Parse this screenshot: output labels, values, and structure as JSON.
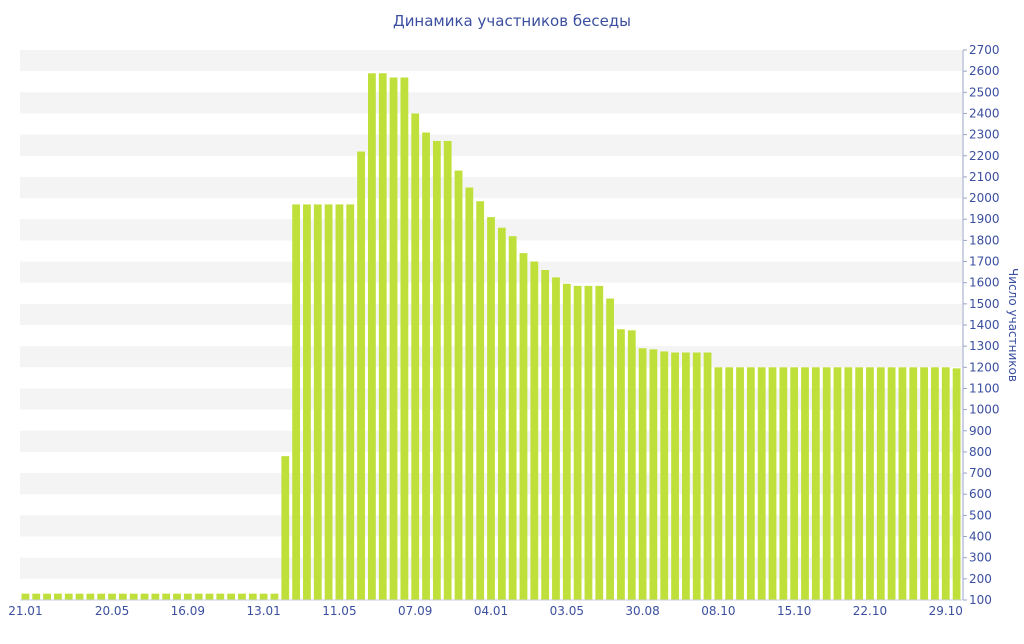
{
  "chart_data": {
    "type": "bar",
    "title": "Динамика участников беседы",
    "xlabel": "",
    "ylabel": "Число участников",
    "ylim": [
      100,
      2700
    ],
    "y_ticks": [
      100,
      200,
      300,
      400,
      500,
      600,
      700,
      800,
      900,
      1000,
      1100,
      1200,
      1300,
      1400,
      1500,
      1600,
      1700,
      1800,
      1900,
      2000,
      2100,
      2200,
      2300,
      2400,
      2500,
      2600,
      2700
    ],
    "x_tick_labels": [
      {
        "index": 0,
        "label": "21.01"
      },
      {
        "index": 8,
        "label": "20.05"
      },
      {
        "index": 15,
        "label": "16.09"
      },
      {
        "index": 22,
        "label": "13.01"
      },
      {
        "index": 29,
        "label": "11.05"
      },
      {
        "index": 36,
        "label": "07.09"
      },
      {
        "index": 43,
        "label": "04.01"
      },
      {
        "index": 50,
        "label": "03.05"
      },
      {
        "index": 57,
        "label": "30.08"
      },
      {
        "index": 64,
        "label": "08.10"
      },
      {
        "index": 71,
        "label": "15.10"
      },
      {
        "index": 78,
        "label": "22.10"
      },
      {
        "index": 85,
        "label": "29.10"
      }
    ],
    "values": [
      130,
      130,
      130,
      130,
      130,
      130,
      130,
      130,
      130,
      130,
      130,
      130,
      130,
      130,
      130,
      130,
      130,
      130,
      130,
      130,
      130,
      130,
      130,
      130,
      780,
      1970,
      1970,
      1970,
      1970,
      1970,
      1970,
      2220,
      2590,
      2590,
      2570,
      2570,
      2400,
      2310,
      2270,
      2270,
      2130,
      2050,
      1985,
      1910,
      1860,
      1820,
      1740,
      1700,
      1660,
      1625,
      1595,
      1585,
      1585,
      1585,
      1525,
      1380,
      1375,
      1290,
      1285,
      1275,
      1270,
      1270,
      1270,
      1270,
      1200,
      1200,
      1200,
      1200,
      1200,
      1200,
      1200,
      1200,
      1200,
      1200,
      1200,
      1200,
      1200,
      1200,
      1200,
      1200,
      1200,
      1200,
      1200,
      1200,
      1200,
      1200,
      1195
    ],
    "bar_color": "#bfe03a",
    "stripe_color": "#f4f4f4",
    "axis_text_color": "#3b4fa0",
    "grid": "alternating-bands",
    "legend": "none"
  }
}
